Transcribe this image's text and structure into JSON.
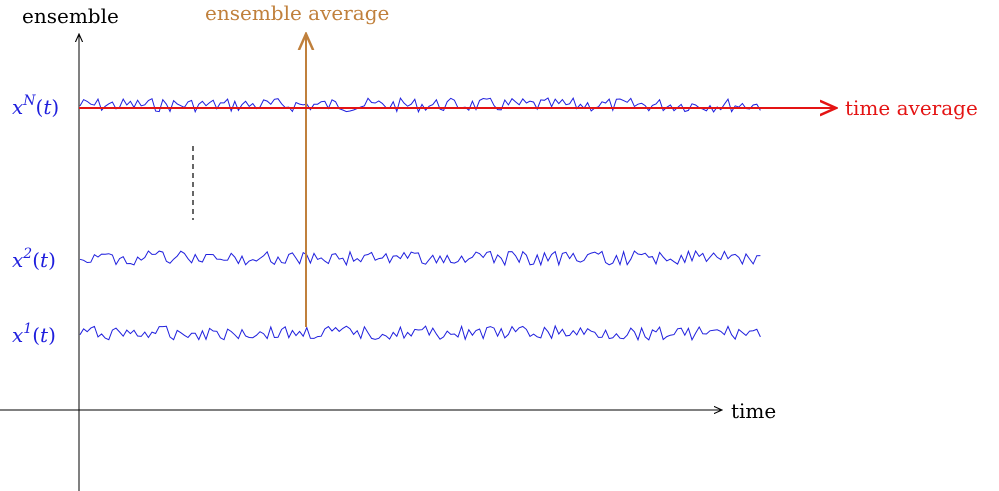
{
  "axes": {
    "y_label": "ensemble",
    "x_label": "time"
  },
  "ensemble_average": {
    "label": "ensemble average",
    "color": "#c0803c"
  },
  "time_average": {
    "label": "time average",
    "color": "#e41414"
  },
  "signals": {
    "color": "#1f1fdd",
    "items": [
      {
        "id": "N",
        "prefix": "x",
        "sup": "N",
        "suffix": "(t)"
      },
      {
        "id": "2",
        "prefix": "x",
        "sup": "2",
        "suffix": "(t)"
      },
      {
        "id": "1",
        "prefix": "x",
        "sup": "1",
        "suffix": "(t)"
      }
    ]
  }
}
